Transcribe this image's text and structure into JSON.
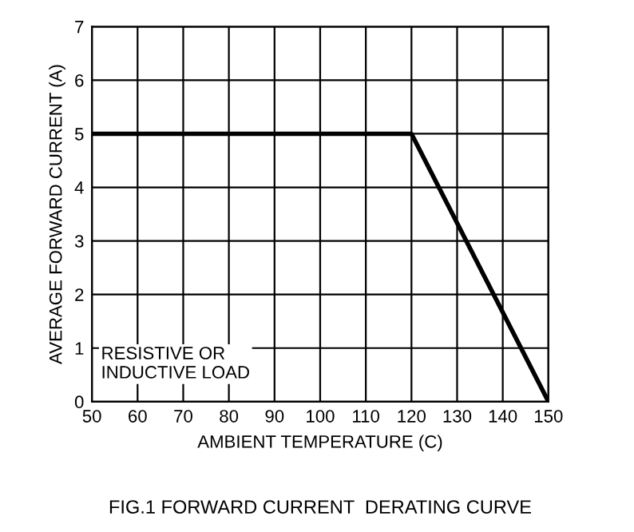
{
  "chart_data": {
    "type": "line",
    "title": "FIG.1 FORWARD CURRENT  DERATING CURVE",
    "xlabel": "AMBIENT TEMPERATURE (C)",
    "ylabel": "AVERAGE FORWARD CURRENT (A)",
    "x": [
      50,
      120,
      150
    ],
    "series": [
      {
        "color": "#000000",
        "values": [
          5,
          5,
          0
        ]
      }
    ],
    "xlim": [
      50,
      150
    ],
    "ylim": [
      0,
      7
    ],
    "xticks": [
      50,
      60,
      70,
      80,
      90,
      100,
      110,
      120,
      130,
      140,
      150
    ],
    "yticks": [
      0,
      1,
      2,
      3,
      4,
      5,
      6,
      7
    ],
    "grid": true,
    "annotations": [
      "RESISTIVE OR\nINDUCTIVE LOAD"
    ]
  }
}
